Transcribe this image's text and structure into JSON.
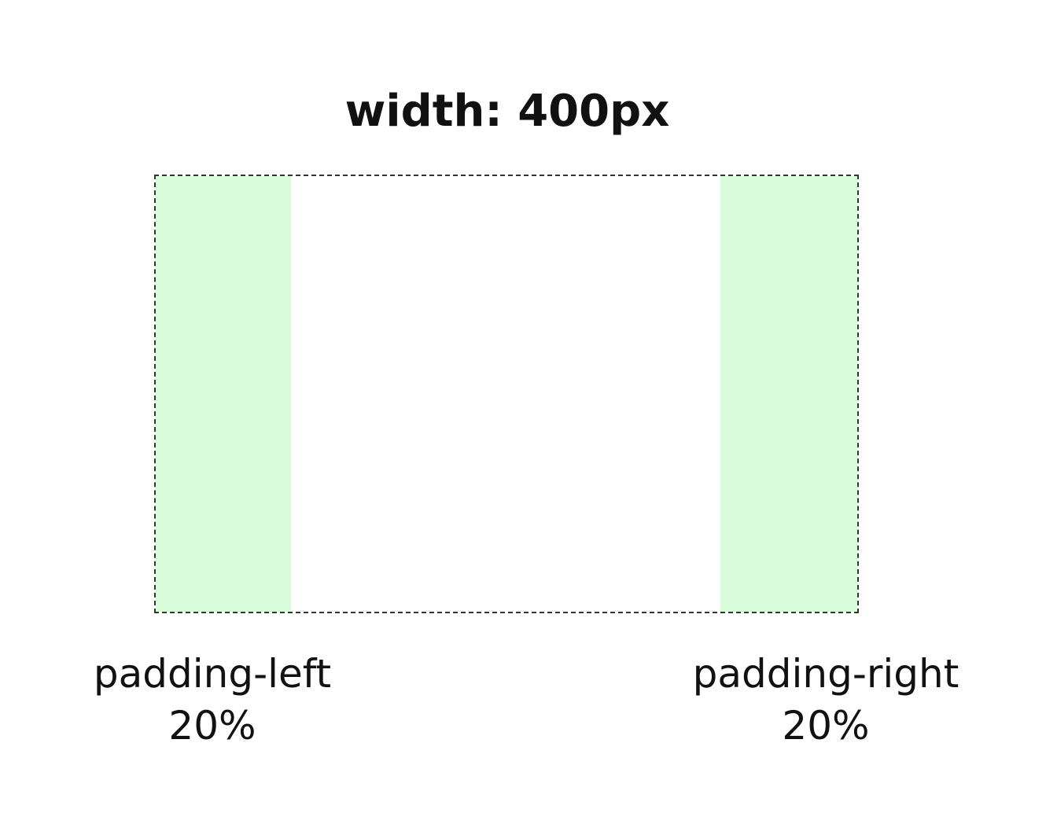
{
  "title": "width: 400px",
  "colors": {
    "padding_fill": "#d9fcd9",
    "border": "#2a3a2a",
    "background": "#ffffff",
    "text": "#111111"
  },
  "box": {
    "padding_left_fraction": 0.2,
    "padding_right_fraction": 0.2
  },
  "labels": {
    "left": {
      "name": "padding-left",
      "value": "20%"
    },
    "right": {
      "name": "padding-right",
      "value": "20%"
    }
  }
}
